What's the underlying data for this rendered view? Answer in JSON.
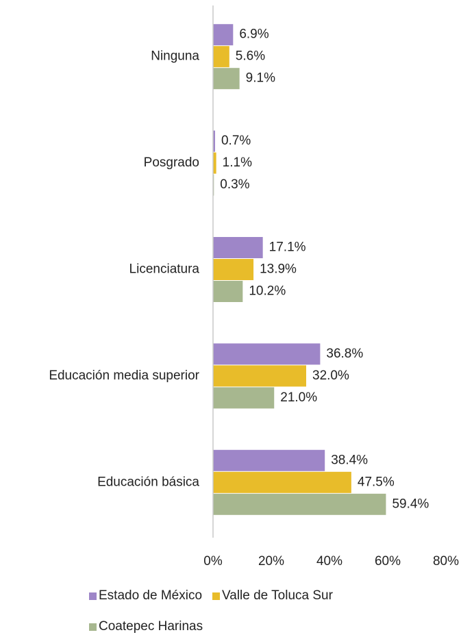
{
  "chart_data": {
    "type": "hbar",
    "categories": [
      "Ninguna",
      "Posgrado",
      "Licenciatura",
      "Educación media superior",
      "Educación básica"
    ],
    "series": [
      {
        "name": "Estado de México",
        "color": "#9e86c8",
        "values": [
          6.9,
          0.7,
          17.1,
          36.8,
          38.4
        ],
        "value_labels": [
          "6.9%",
          "0.7%",
          "17.1%",
          "36.8%",
          "38.4%"
        ]
      },
      {
        "name": "Valle de Toluca Sur",
        "color": "#e8bc2a",
        "values": [
          5.6,
          1.1,
          13.9,
          32.0,
          47.5
        ],
        "value_labels": [
          "5.6%",
          "1.1%",
          "13.9%",
          "32.0%",
          "47.5%"
        ]
      },
      {
        "name": "Coatepec Harinas",
        "color": "#a7b78f",
        "values": [
          9.1,
          0.3,
          10.2,
          21.0,
          59.4
        ],
        "value_labels": [
          "9.1%",
          "0.3%",
          "10.2%",
          "21.0%",
          "59.4%"
        ]
      }
    ],
    "xlim": [
      0,
      80
    ],
    "xticks": [
      {
        "value": 0,
        "label": "0%"
      },
      {
        "value": 20,
        "label": "20%"
      },
      {
        "value": 40,
        "label": "40%"
      },
      {
        "value": 60,
        "label": "60%"
      },
      {
        "value": 80,
        "label": "80%"
      }
    ]
  }
}
